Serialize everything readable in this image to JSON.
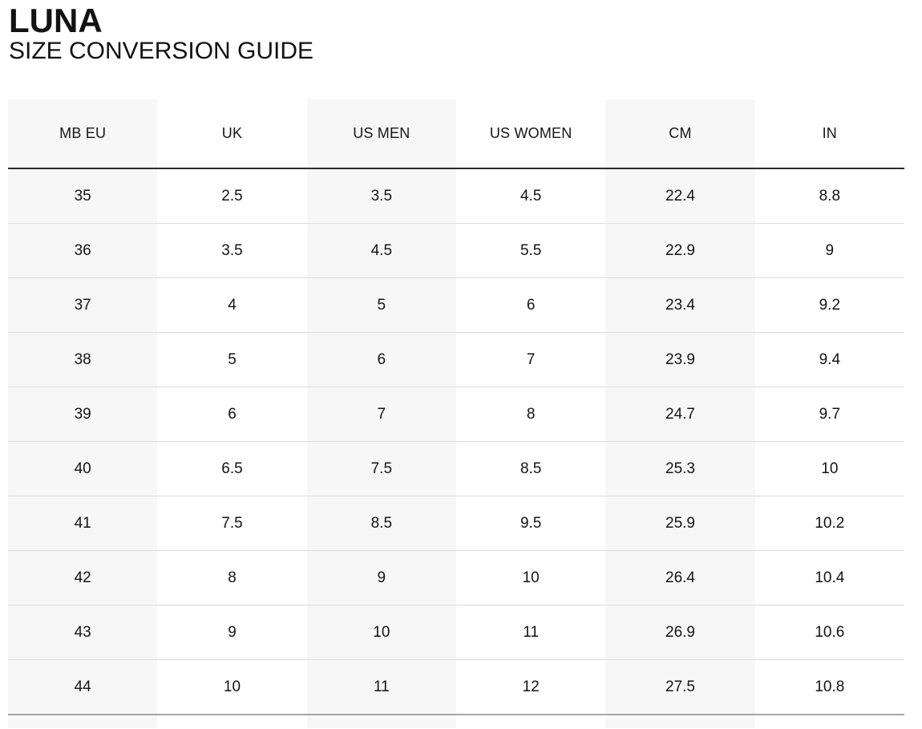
{
  "header": {
    "brand": "LUNA",
    "subtitle": "SIZE CONVERSION GUIDE"
  },
  "table": {
    "columns": [
      "MB EU",
      "UK",
      "US MEN",
      "US WOMEN",
      "CM",
      "IN"
    ],
    "rows": [
      [
        "35",
        "2.5",
        "3.5",
        "4.5",
        "22.4",
        "8.8"
      ],
      [
        "36",
        "3.5",
        "4.5",
        "5.5",
        "22.9",
        "9"
      ],
      [
        "37",
        "4",
        "5",
        "6",
        "23.4",
        "9.2"
      ],
      [
        "38",
        "5",
        "6",
        "7",
        "23.9",
        "9.4"
      ],
      [
        "39",
        "6",
        "7",
        "8",
        "24.7",
        "9.7"
      ],
      [
        "40",
        "6.5",
        "7.5",
        "8.5",
        "25.3",
        "10"
      ],
      [
        "41",
        "7.5",
        "8.5",
        "9.5",
        "25.9",
        "10.2"
      ],
      [
        "42",
        "8",
        "9",
        "10",
        "26.4",
        "10.4"
      ],
      [
        "43",
        "9",
        "10",
        "11",
        "26.9",
        "10.6"
      ],
      [
        "44",
        "10",
        "11",
        "12",
        "27.5",
        "10.8"
      ]
    ]
  },
  "colors": {
    "striped_column_bg": "#f7f7f8",
    "header_rule": "#2b2b2b",
    "row_divider": "#dcdcdc",
    "bottom_rule": "#a6a6a6",
    "text": "#141414"
  }
}
